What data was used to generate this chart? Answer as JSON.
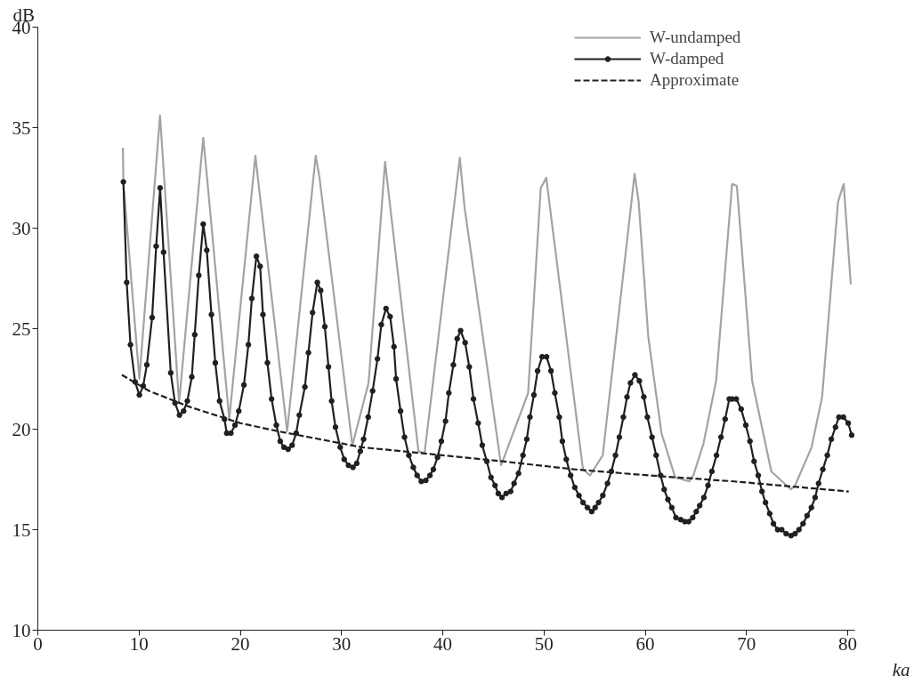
{
  "chart_data": {
    "type": "line",
    "xlabel": "ka",
    "ylabel": "dB",
    "xlim": [
      0,
      80.7
    ],
    "ylim": [
      10,
      40
    ],
    "xticks": [
      0,
      10,
      20,
      30,
      40,
      50,
      60,
      70,
      80
    ],
    "yticks": [
      10,
      15,
      20,
      25,
      30,
      35,
      40
    ],
    "grid": false,
    "legend": "top right",
    "series": [
      {
        "name": "W-undamped",
        "color": "#a3a3a3",
        "marker": "none",
        "line_style": "solid",
        "x": [
          8.4,
          8.45,
          10.03,
          12.07,
          13.95,
          16.34,
          16.7,
          18.91,
          21.49,
          21.85,
          24.63,
          27.45,
          27.8,
          31.07,
          32.67,
          34.3,
          34.73,
          37.6,
          38.2,
          41.68,
          42.16,
          45.76,
          48.43,
          49.68,
          50.22,
          53.85,
          54.55,
          55.8,
          58.95,
          59.35,
          60.3,
          61.6,
          62.96,
          64.34,
          64.75,
          65.76,
          67.0,
          68.58,
          69.05,
          70.56,
          72.45,
          74.39,
          74.8,
          76.43,
          77.47,
          79.04,
          79.6,
          80.3
        ],
        "values": [
          34.0,
          32.3,
          22.5,
          35.6,
          21.3,
          34.5,
          32.6,
          20.5,
          33.6,
          32.0,
          19.9,
          33.6,
          32.6,
          19.2,
          22.3,
          33.3,
          31.4,
          18.9,
          18.8,
          33.5,
          31.0,
          18.2,
          21.8,
          32.0,
          32.5,
          18.0,
          17.7,
          18.7,
          32.7,
          31.3,
          24.6,
          19.8,
          17.6,
          17.4,
          17.7,
          19.3,
          22.4,
          32.2,
          32.1,
          22.4,
          17.9,
          17.0,
          17.2,
          19.1,
          21.6,
          31.3,
          32.2,
          27.2
        ]
      },
      {
        "name": "W-damped",
        "color": "#231f20",
        "marker": "circle",
        "line_style": "solid",
        "x": [
          8.45,
          8.78,
          9.15,
          9.61,
          10.03,
          10.41,
          10.77,
          11.29,
          11.69,
          12.08,
          12.42,
          13.13,
          13.55,
          13.99,
          14.4,
          14.77,
          15.21,
          15.5,
          15.9,
          16.34,
          16.69,
          17.15,
          17.53,
          17.95,
          18.44,
          18.66,
          19.07,
          19.48,
          19.85,
          20.36,
          20.8,
          21.14,
          21.59,
          21.96,
          22.24,
          22.68,
          23.09,
          23.56,
          23.94,
          24.31,
          24.72,
          25.12,
          25.52,
          25.83,
          26.38,
          26.73,
          27.14,
          27.61,
          27.94,
          28.35,
          28.71,
          29.02,
          29.4,
          29.87,
          30.26,
          30.69,
          31.13,
          31.5,
          31.85,
          32.18,
          32.63,
          33.07,
          33.55,
          33.93,
          34.39,
          34.8,
          35.18,
          35.39,
          35.83,
          36.22,
          36.65,
          37.09,
          37.47,
          37.88,
          38.32,
          38.73,
          39.07,
          39.48,
          39.86,
          40.27,
          40.6,
          41.05,
          41.42,
          41.76,
          42.21,
          42.62,
          43.03,
          43.5,
          43.9,
          44.35,
          44.76,
          45.16,
          45.48,
          45.85,
          46.26,
          46.7,
          47.04,
          47.48,
          47.92,
          48.3,
          48.61,
          49.0,
          49.37,
          49.81,
          50.25,
          50.69,
          51.07,
          51.51,
          51.81,
          52.2,
          52.63,
          53.04,
          53.45,
          53.86,
          54.29,
          54.71,
          55.05,
          55.39,
          55.81,
          56.27,
          56.65,
          57.06,
          57.44,
          57.84,
          58.2,
          58.54,
          58.98,
          59.42,
          59.86,
          60.21,
          60.67,
          61.08,
          61.52,
          61.87,
          62.24,
          62.62,
          63.03,
          63.5,
          63.91,
          64.28,
          64.69,
          65.04,
          65.38,
          65.79,
          66.2,
          66.58,
          67.04,
          67.48,
          67.89,
          68.3,
          68.58,
          68.99,
          69.47,
          69.93,
          70.34,
          70.75,
          71.16,
          71.53,
          71.88,
          72.29,
          72.66,
          73.08,
          73.48,
          73.92,
          74.4,
          74.8,
          75.18,
          75.59,
          75.99,
          76.41,
          76.78,
          77.12,
          77.54,
          77.98,
          78.38,
          78.79,
          79.13,
          79.57,
          80.05,
          80.39
        ],
        "values": [
          32.3,
          27.3,
          24.2,
          22.35,
          21.7,
          22.15,
          23.2,
          25.55,
          29.1,
          32.0,
          28.8,
          22.8,
          21.3,
          20.7,
          20.9,
          21.4,
          22.6,
          24.7,
          27.65,
          30.2,
          28.9,
          25.7,
          23.3,
          21.4,
          20.5,
          19.8,
          19.8,
          20.2,
          20.9,
          22.2,
          24.2,
          26.5,
          28.6,
          28.1,
          25.7,
          23.3,
          21.5,
          20.2,
          19.4,
          19.1,
          19.0,
          19.2,
          19.8,
          20.7,
          22.1,
          23.8,
          25.8,
          27.3,
          26.9,
          25.1,
          23.1,
          21.4,
          20.1,
          19.1,
          18.5,
          18.2,
          18.1,
          18.3,
          18.9,
          19.5,
          20.6,
          21.9,
          23.5,
          25.2,
          26.0,
          25.6,
          24.1,
          22.5,
          20.9,
          19.6,
          18.7,
          18.1,
          17.7,
          17.4,
          17.45,
          17.7,
          18.0,
          18.6,
          19.4,
          20.4,
          21.8,
          23.2,
          24.5,
          24.9,
          24.3,
          23.1,
          21.5,
          20.3,
          19.2,
          18.4,
          17.6,
          17.2,
          16.8,
          16.6,
          16.8,
          16.9,
          17.3,
          17.8,
          18.7,
          19.5,
          20.6,
          21.7,
          22.9,
          23.6,
          23.6,
          22.9,
          21.8,
          20.6,
          19.4,
          18.5,
          17.7,
          17.1,
          16.7,
          16.35,
          16.1,
          15.9,
          16.1,
          16.35,
          16.7,
          17.3,
          17.9,
          18.7,
          19.6,
          20.6,
          21.6,
          22.3,
          22.7,
          22.4,
          21.6,
          20.6,
          19.6,
          18.7,
          17.7,
          17.0,
          16.5,
          16.1,
          15.6,
          15.5,
          15.4,
          15.4,
          15.6,
          15.9,
          16.2,
          16.6,
          17.2,
          17.9,
          18.7,
          19.6,
          20.5,
          21.5,
          21.5,
          21.5,
          21.0,
          20.2,
          19.4,
          18.4,
          17.7,
          16.9,
          16.35,
          15.8,
          15.3,
          15.0,
          15.0,
          14.8,
          14.7,
          14.8,
          15.0,
          15.3,
          15.7,
          16.1,
          16.6,
          17.3,
          18.0,
          18.7,
          19.5,
          20.1,
          20.6,
          20.6,
          20.3,
          19.7
        ]
      },
      {
        "name": "Approximate",
        "color": "#231f20",
        "marker": "none",
        "line_style": "dashed",
        "x": [
          8.3,
          11.0,
          15.05,
          20.0,
          23.7,
          32.0,
          40.0,
          45.9,
          53.0,
          60.36,
          68.8,
          80.1
        ],
        "values": [
          22.7,
          21.9,
          21.1,
          20.3,
          19.9,
          19.1,
          18.7,
          18.4,
          18.0,
          17.7,
          17.4,
          16.9
        ]
      }
    ]
  }
}
